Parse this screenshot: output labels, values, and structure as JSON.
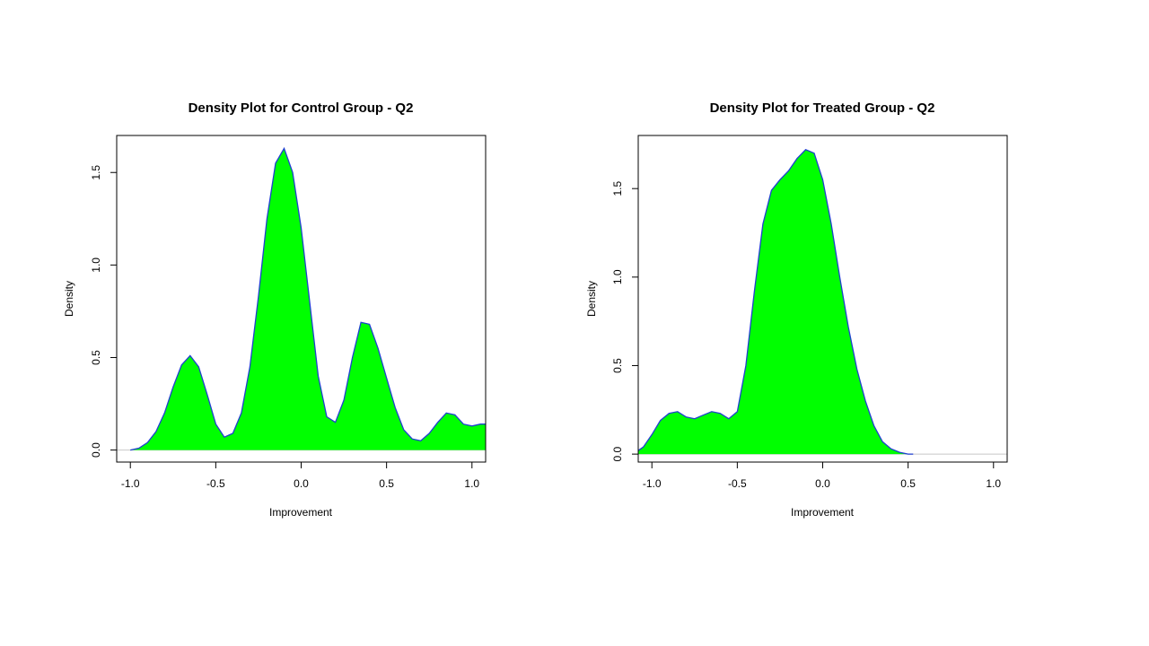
{
  "colors": {
    "fill": "#00ff00",
    "line": "#1f3fd0",
    "baseline": "#c8c8c8",
    "axis": "#000000"
  },
  "chart_data": [
    {
      "type": "area",
      "title": "Density Plot for Control Group - Q2",
      "xlabel": "Improvement",
      "ylabel": "Density",
      "xlim": [
        -1.08,
        1.08
      ],
      "ylim": [
        -0.065,
        1.7
      ],
      "xticks": [
        -1.0,
        -0.5,
        0.0,
        0.5,
        1.0
      ],
      "xtick_labels": [
        "-1.0",
        "-0.5",
        "0.0",
        "0.5",
        "1.0"
      ],
      "yticks": [
        0.0,
        0.5,
        1.0,
        1.5
      ],
      "ytick_labels": [
        "0.0",
        "0.5",
        "1.0",
        "1.5"
      ],
      "grid": false,
      "x": [
        -1.0,
        -0.95,
        -0.9,
        -0.85,
        -0.8,
        -0.75,
        -0.7,
        -0.65,
        -0.6,
        -0.55,
        -0.5,
        -0.45,
        -0.4,
        -0.35,
        -0.3,
        -0.25,
        -0.2,
        -0.15,
        -0.1,
        -0.05,
        0.0,
        0.05,
        0.1,
        0.15,
        0.2,
        0.25,
        0.3,
        0.35,
        0.4,
        0.45,
        0.5,
        0.55,
        0.6,
        0.65,
        0.7,
        0.75,
        0.8,
        0.85,
        0.9,
        0.95,
        1.0,
        1.05,
        1.08
      ],
      "y": [
        0.0,
        0.01,
        0.04,
        0.1,
        0.2,
        0.34,
        0.46,
        0.51,
        0.45,
        0.3,
        0.14,
        0.07,
        0.09,
        0.2,
        0.45,
        0.83,
        1.25,
        1.55,
        1.63,
        1.5,
        1.2,
        0.8,
        0.4,
        0.18,
        0.15,
        0.27,
        0.5,
        0.69,
        0.68,
        0.55,
        0.39,
        0.23,
        0.11,
        0.06,
        0.05,
        0.09,
        0.15,
        0.2,
        0.19,
        0.14,
        0.13,
        0.14,
        0.14
      ]
    },
    {
      "type": "area",
      "title": "Density Plot for Treated Group - Q2",
      "xlabel": "Improvement",
      "ylabel": "Density",
      "xlim": [
        -1.08,
        1.08
      ],
      "ylim": [
        -0.045,
        1.8
      ],
      "xticks": [
        -1.0,
        -0.5,
        0.0,
        0.5,
        1.0
      ],
      "xtick_labels": [
        "-1.0",
        "-0.5",
        "0.0",
        "0.5",
        "1.0"
      ],
      "yticks": [
        0.0,
        0.5,
        1.0,
        1.5
      ],
      "ytick_labels": [
        "0.0",
        "0.5",
        "1.0",
        "1.5"
      ],
      "grid": false,
      "x": [
        -1.08,
        -1.05,
        -1.0,
        -0.95,
        -0.9,
        -0.85,
        -0.8,
        -0.75,
        -0.7,
        -0.65,
        -0.6,
        -0.55,
        -0.5,
        -0.45,
        -0.4,
        -0.35,
        -0.3,
        -0.25,
        -0.2,
        -0.15,
        -0.1,
        -0.05,
        0.0,
        0.05,
        0.1,
        0.15,
        0.2,
        0.25,
        0.3,
        0.35,
        0.4,
        0.45,
        0.5,
        0.53
      ],
      "y": [
        0.02,
        0.04,
        0.11,
        0.19,
        0.23,
        0.24,
        0.21,
        0.2,
        0.22,
        0.24,
        0.23,
        0.2,
        0.24,
        0.5,
        0.92,
        1.3,
        1.49,
        1.55,
        1.6,
        1.67,
        1.72,
        1.7,
        1.55,
        1.3,
        1.0,
        0.72,
        0.48,
        0.3,
        0.16,
        0.07,
        0.03,
        0.01,
        0.0,
        0.0
      ]
    }
  ]
}
